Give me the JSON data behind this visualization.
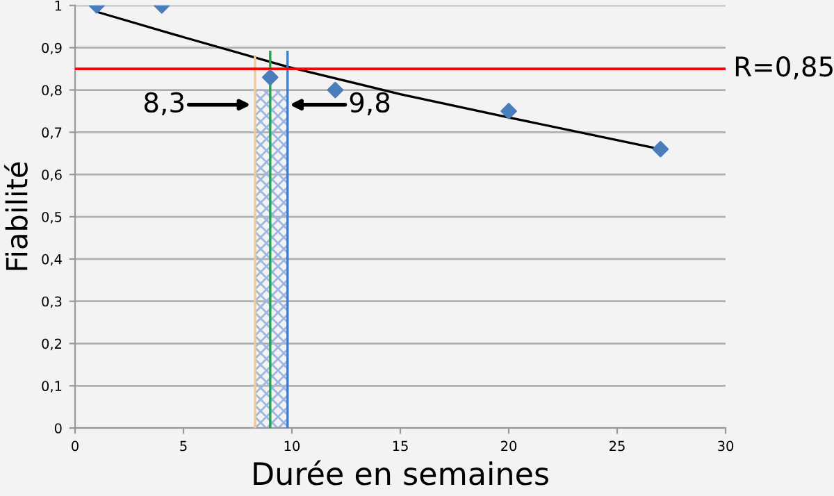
{
  "chart_data": {
    "type": "scatter",
    "xlabel": "Durée en semaines",
    "ylabel": "Fiabilité",
    "xlim": [
      0,
      30
    ],
    "xticks": [
      0,
      5,
      10,
      15,
      20,
      25,
      30
    ],
    "ylim": [
      0,
      1
    ],
    "yticks": [
      0,
      {
        "value": 0.1,
        "label": "0,1"
      },
      {
        "value": 0.2,
        "label": "0,2"
      },
      {
        "value": 0.3,
        "label": "0,3"
      },
      {
        "value": 0.4,
        "label": "0,4"
      },
      {
        "value": 0.5,
        "label": "0,5"
      },
      {
        "value": 0.6,
        "label": "0,6"
      },
      {
        "value": 0.7,
        "label": "0,7"
      },
      {
        "value": 0.8,
        "label": "0,8"
      },
      {
        "value": 0.9,
        "label": "0,9"
      },
      1
    ],
    "grid": "y",
    "marker": "diamond",
    "series": [
      {
        "type": "area",
        "marker": "none",
        "color": "#9db7e0",
        "x": [
          8.3,
          9.8
        ],
        "values": [
          0.8,
          0.8
        ]
      },
      {
        "type": "line",
        "marker": "none",
        "color": "#000000",
        "x": [
          1,
          5,
          9.8,
          15,
          20,
          27
        ],
        "values": [
          0.985,
          0.925,
          0.855,
          0.79,
          0.735,
          0.66
        ]
      },
      {
        "type": "line",
        "marker": "none",
        "color": "#f5c89a",
        "x": [
          8.3,
          8.3
        ],
        "values": [
          0,
          0.88
        ]
      },
      {
        "type": "line",
        "marker": "none",
        "color": "#1aa84a",
        "x": [
          9,
          9
        ],
        "values": [
          0,
          0.89
        ]
      },
      {
        "type": "line",
        "marker": "none",
        "color": "#3d7cc9",
        "x": [
          9.8,
          9.8
        ],
        "values": [
          0,
          0.89
        ]
      },
      {
        "color": "#4a7ebb",
        "x": [
          1,
          4,
          9,
          12,
          20,
          27
        ],
        "values": [
          1,
          1,
          0.83,
          0.8,
          0.75,
          0.66
        ]
      }
    ],
    "ref_lines": [
      {
        "axis": "y",
        "value": 0.85,
        "label": "R=0,85",
        "color": "#ff0000"
      }
    ],
    "annotations": [
      "8,3",
      "9,8"
    ]
  }
}
